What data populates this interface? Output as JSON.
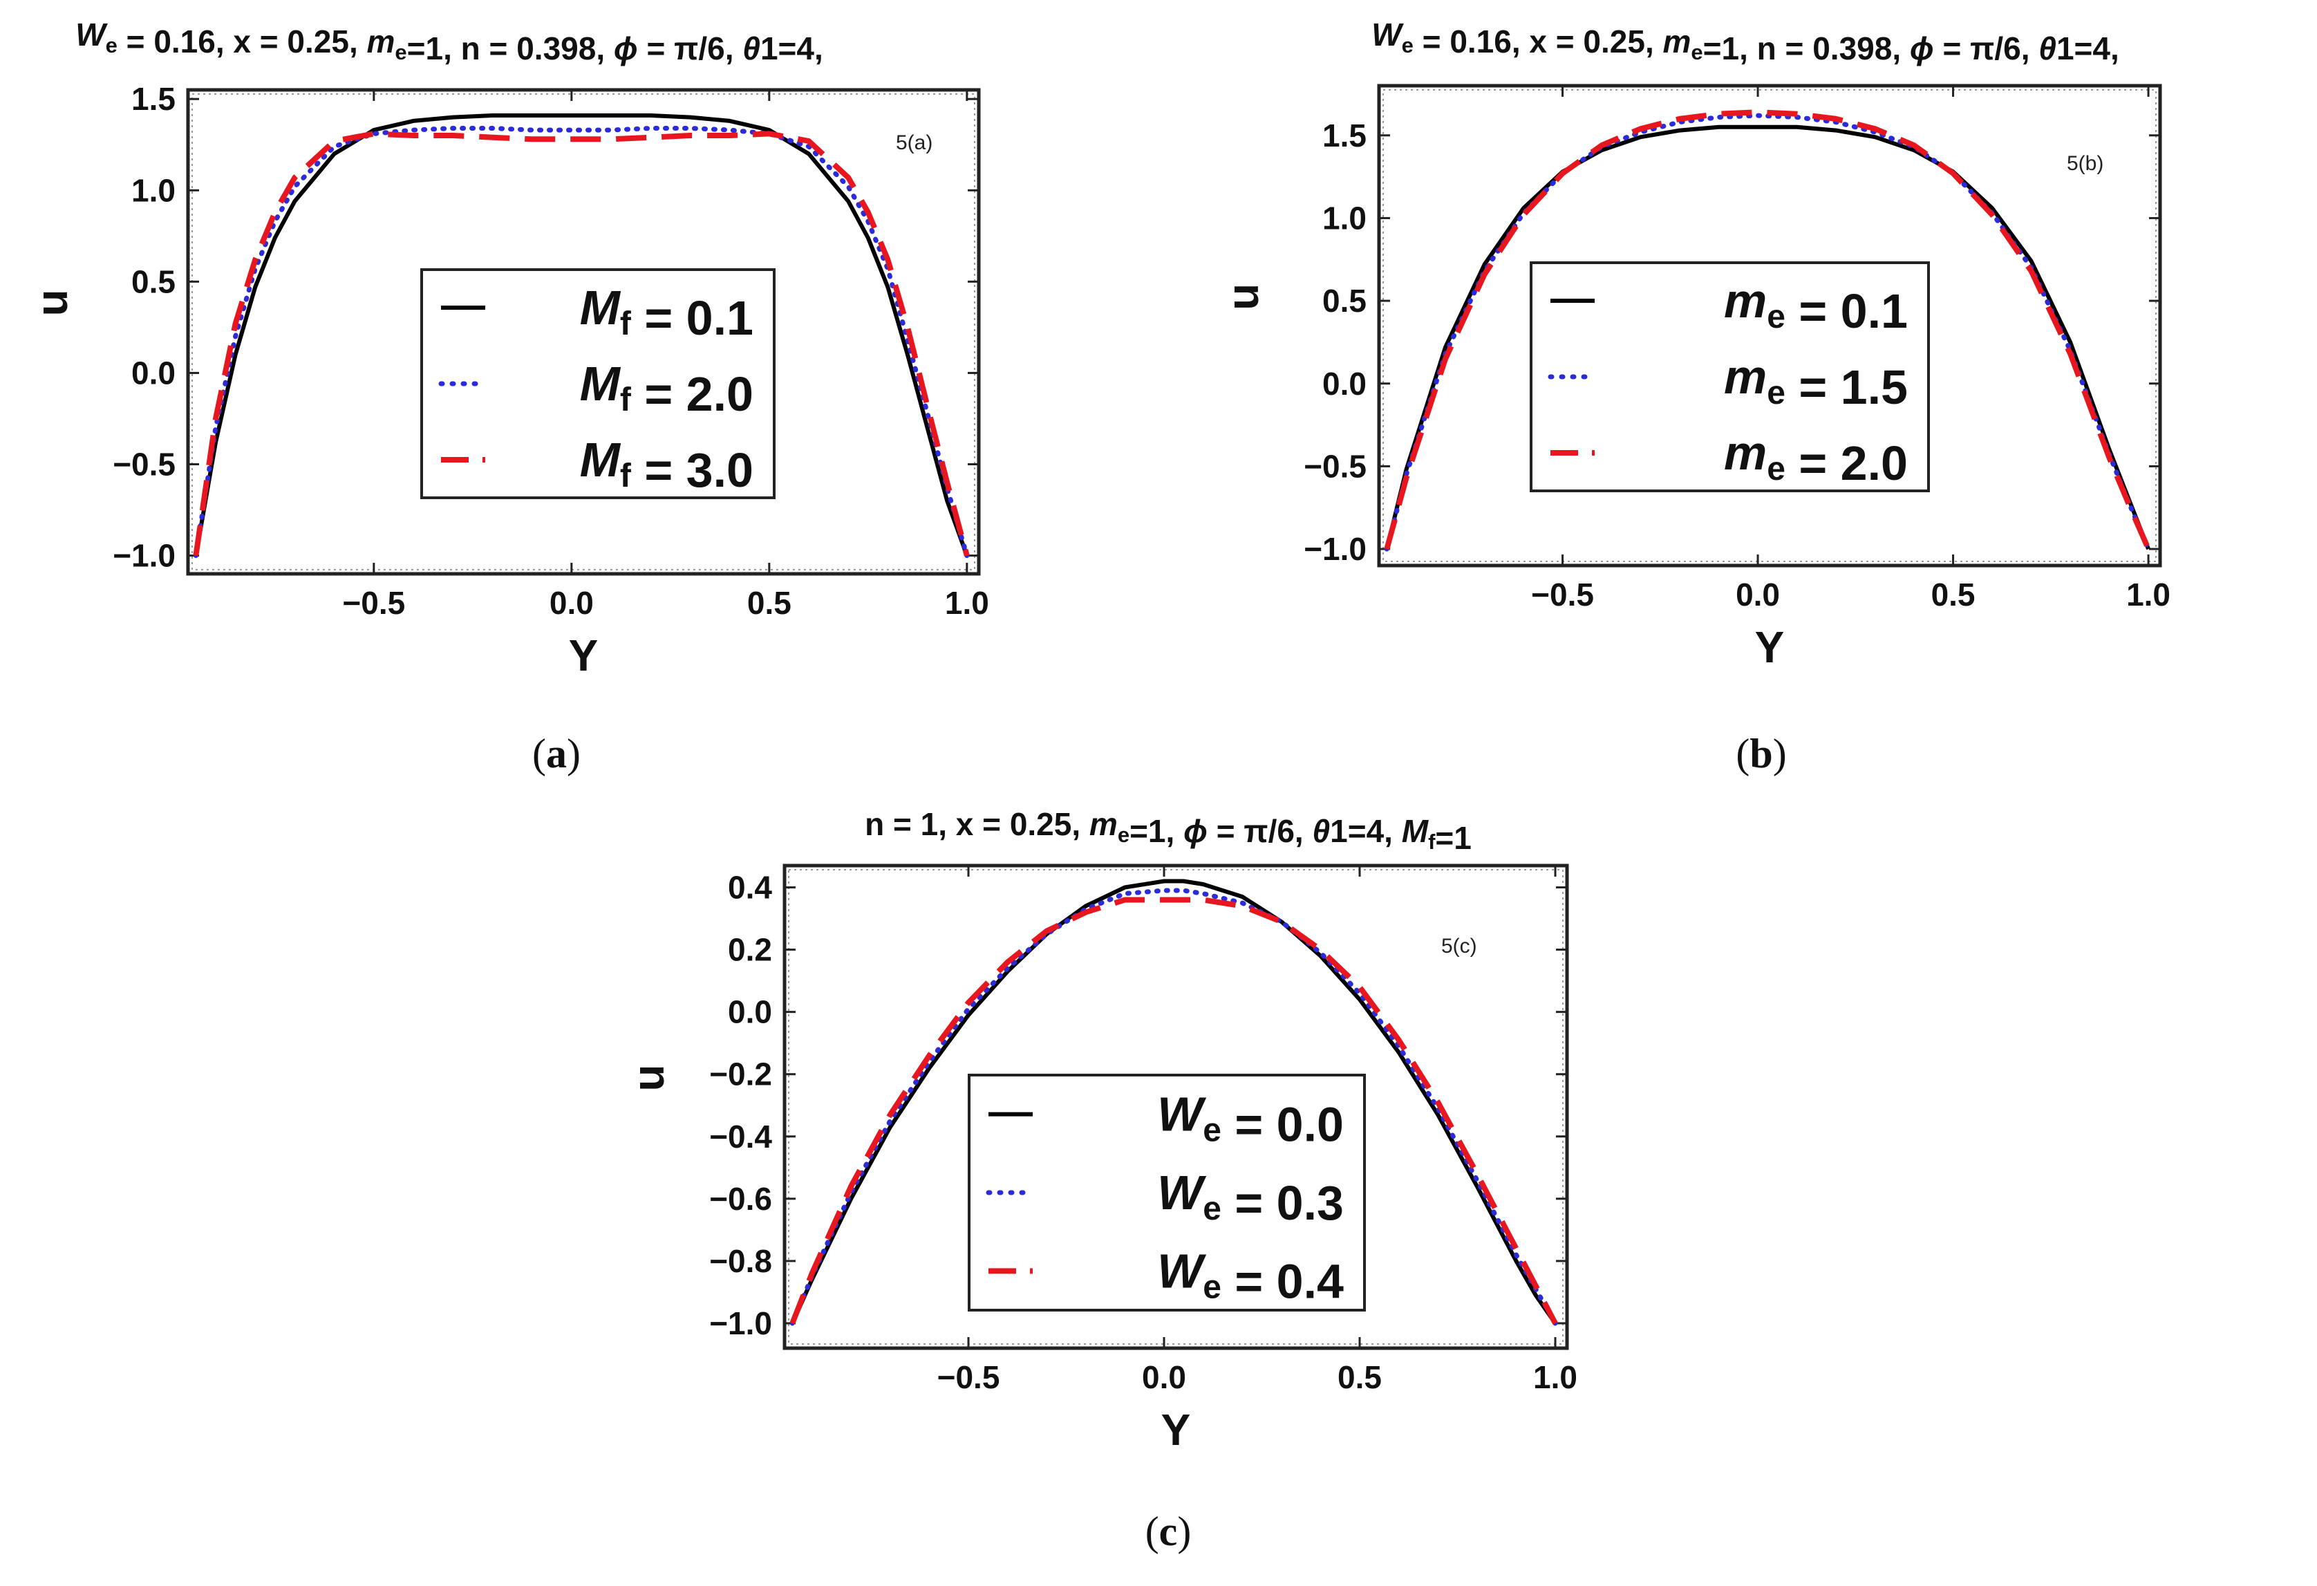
{
  "panels": [
    {
      "title_parts": [
        {
          "t": "W",
          "i": true
        },
        {
          "t": "e",
          "sub": true
        },
        {
          "t": " = 0.16, x = 0.25, "
        },
        {
          "t": "m",
          "i": true
        },
        {
          "t": "e",
          "sub": true
        },
        {
          "t": "=1, n = 0.398, "
        },
        {
          "t": "ϕ",
          "i": true
        },
        {
          "t": " = π/6, "
        },
        {
          "t": "θ",
          "i": true
        },
        {
          "t": "1=4,"
        }
      ],
      "panel_tag": "5(a)",
      "caption": "a",
      "legend": [
        {
          "main": "M",
          "sub": "f",
          "rest": " = 0.1"
        },
        {
          "main": "M",
          "sub": "f",
          "rest": " = 2.0"
        },
        {
          "main": "M",
          "sub": "f",
          "rest": " = 3.0"
        }
      ]
    },
    {
      "title_parts": [
        {
          "t": "W",
          "i": true
        },
        {
          "t": "e",
          "sub": true
        },
        {
          "t": " = 0.16, x = 0.25, "
        },
        {
          "t": "m",
          "i": true
        },
        {
          "t": "e",
          "sub": true
        },
        {
          "t": "=1, n = 0.398, "
        },
        {
          "t": "ϕ",
          "i": true
        },
        {
          "t": " = π/6, "
        },
        {
          "t": "θ",
          "i": true
        },
        {
          "t": "1=4,"
        }
      ],
      "panel_tag": "5(b)",
      "caption": "b",
      "legend": [
        {
          "main": "m",
          "sub": "e",
          "rest": " = 0.1"
        },
        {
          "main": "m",
          "sub": "e",
          "rest": " = 1.5"
        },
        {
          "main": "m",
          "sub": "e",
          "rest": " = 2.0"
        }
      ]
    },
    {
      "title_parts": [
        {
          "t": "n = 1, x = 0.25, "
        },
        {
          "t": "m",
          "i": true
        },
        {
          "t": "e",
          "sub": true
        },
        {
          "t": "=1, "
        },
        {
          "t": "ϕ",
          "i": true
        },
        {
          "t": " = π/6, "
        },
        {
          "t": "θ",
          "i": true
        },
        {
          "t": "1=4, "
        },
        {
          "t": "M",
          "i": true
        },
        {
          "t": "f",
          "sub": true
        },
        {
          "t": "=1"
        }
      ],
      "panel_tag": "5(c)",
      "caption": "c",
      "legend": [
        {
          "main": "W",
          "sub": "e",
          "rest": " = 0.0"
        },
        {
          "main": "W",
          "sub": "e",
          "rest": " = 0.3"
        },
        {
          "main": "W",
          "sub": "e",
          "rest": " = 0.4"
        }
      ]
    }
  ],
  "series_styles": [
    {
      "color": "#000000",
      "dash": "solid"
    },
    {
      "color": "#2b2bd9",
      "dash": "dotted"
    },
    {
      "color": "#e8171f",
      "dash": "dashed"
    }
  ],
  "chart_data": [
    {
      "type": "line",
      "xlabel": "Y",
      "ylabel": "u",
      "xlim": [
        -0.97,
        1.03
      ],
      "ylim": [
        -1.1,
        1.55
      ],
      "xticks": [
        -0.5,
        0.0,
        0.5,
        1.0
      ],
      "xtick_labels": [
        "−0.5",
        "0.0",
        "0.5",
        "1.0"
      ],
      "yticks": [
        -1.0,
        -0.5,
        0.0,
        0.5,
        1.0,
        1.5
      ],
      "ytick_labels": [
        "−1.0",
        "−0.5",
        "0.0",
        "0.5",
        "1.0",
        "1.5"
      ],
      "legend_position": "lower-center",
      "series": [
        {
          "x": [
            -0.95,
            -0.9,
            -0.85,
            -0.8,
            -0.75,
            -0.7,
            -0.6,
            -0.5,
            -0.4,
            -0.3,
            -0.2,
            -0.1,
            0.0,
            0.1,
            0.2,
            0.3,
            0.4,
            0.5,
            0.6,
            0.7,
            0.75,
            0.8,
            0.85,
            0.9,
            0.95,
            1.0
          ],
          "y": [
            -1.0,
            -0.38,
            0.1,
            0.47,
            0.74,
            0.94,
            1.2,
            1.33,
            1.38,
            1.4,
            1.41,
            1.41,
            1.41,
            1.41,
            1.41,
            1.4,
            1.38,
            1.33,
            1.2,
            0.94,
            0.74,
            0.47,
            0.1,
            -0.3,
            -0.7,
            -1.0
          ]
        },
        {
          "x": [
            -0.95,
            -0.9,
            -0.85,
            -0.8,
            -0.75,
            -0.7,
            -0.6,
            -0.5,
            -0.4,
            -0.3,
            -0.2,
            -0.1,
            0.0,
            0.1,
            0.2,
            0.3,
            0.4,
            0.5,
            0.6,
            0.7,
            0.75,
            0.8,
            0.85,
            0.9,
            0.95,
            1.0
          ],
          "y": [
            -1.0,
            -0.3,
            0.2,
            0.57,
            0.83,
            1.02,
            1.24,
            1.31,
            1.33,
            1.34,
            1.34,
            1.33,
            1.33,
            1.33,
            1.34,
            1.34,
            1.33,
            1.31,
            1.24,
            1.02,
            0.83,
            0.57,
            0.18,
            -0.22,
            -0.63,
            -1.0
          ]
        },
        {
          "x": [
            -0.95,
            -0.9,
            -0.85,
            -0.8,
            -0.75,
            -0.7,
            -0.6,
            -0.5,
            -0.4,
            -0.3,
            -0.2,
            -0.1,
            0.0,
            0.1,
            0.2,
            0.3,
            0.4,
            0.5,
            0.6,
            0.7,
            0.75,
            0.8,
            0.85,
            0.9,
            0.95,
            1.0
          ],
          "y": [
            -1.0,
            -0.25,
            0.27,
            0.62,
            0.88,
            1.07,
            1.27,
            1.31,
            1.3,
            1.3,
            1.29,
            1.28,
            1.28,
            1.28,
            1.29,
            1.3,
            1.3,
            1.31,
            1.27,
            1.07,
            0.88,
            0.62,
            0.25,
            -0.18,
            -0.6,
            -1.0
          ]
        }
      ]
    },
    {
      "type": "line",
      "xlabel": "Y",
      "ylabel": "u",
      "xlim": [
        -0.97,
        1.03
      ],
      "ylim": [
        -1.1,
        1.8
      ],
      "xticks": [
        -0.5,
        0.0,
        0.5,
        1.0
      ],
      "xtick_labels": [
        "−0.5",
        "0.0",
        "0.5",
        "1.0"
      ],
      "yticks": [
        -1.0,
        -0.5,
        0.0,
        0.5,
        1.0,
        1.5
      ],
      "ytick_labels": [
        "−1.0",
        "−0.5",
        "0.0",
        "0.5",
        "1.0",
        "1.5"
      ],
      "legend_position": "lower-center",
      "series": [
        {
          "x": [
            -0.95,
            -0.9,
            -0.8,
            -0.7,
            -0.6,
            -0.5,
            -0.4,
            -0.3,
            -0.2,
            -0.1,
            0.0,
            0.1,
            0.2,
            0.3,
            0.4,
            0.5,
            0.6,
            0.7,
            0.8,
            0.9,
            0.95,
            1.0
          ],
          "y": [
            -1.0,
            -0.52,
            0.22,
            0.72,
            1.06,
            1.28,
            1.41,
            1.49,
            1.53,
            1.55,
            1.55,
            1.55,
            1.53,
            1.49,
            1.41,
            1.28,
            1.06,
            0.74,
            0.25,
            -0.4,
            -0.7,
            -1.0
          ]
        },
        {
          "x": [
            -0.95,
            -0.9,
            -0.8,
            -0.7,
            -0.6,
            -0.5,
            -0.4,
            -0.3,
            -0.2,
            -0.1,
            0.0,
            0.1,
            0.2,
            0.3,
            0.4,
            0.5,
            0.6,
            0.7,
            0.8,
            0.9,
            0.95,
            1.0
          ],
          "y": [
            -1.0,
            -0.55,
            0.18,
            0.68,
            1.03,
            1.27,
            1.43,
            1.52,
            1.58,
            1.61,
            1.62,
            1.61,
            1.58,
            1.52,
            1.43,
            1.27,
            1.03,
            0.7,
            0.2,
            -0.43,
            -0.72,
            -1.0
          ]
        },
        {
          "x": [
            -0.95,
            -0.9,
            -0.8,
            -0.7,
            -0.6,
            -0.5,
            -0.4,
            -0.3,
            -0.2,
            -0.1,
            0.0,
            0.1,
            0.2,
            0.3,
            0.4,
            0.5,
            0.6,
            0.7,
            0.8,
            0.9,
            0.95,
            1.0
          ],
          "y": [
            -1.0,
            -0.57,
            0.15,
            0.66,
            1.02,
            1.27,
            1.44,
            1.54,
            1.6,
            1.63,
            1.64,
            1.63,
            1.6,
            1.54,
            1.44,
            1.27,
            1.02,
            0.68,
            0.18,
            -0.45,
            -0.73,
            -1.0
          ]
        }
      ]
    },
    {
      "type": "line",
      "xlabel": "Y",
      "ylabel": "u",
      "xlim": [
        -0.97,
        1.03
      ],
      "ylim": [
        -1.08,
        0.47
      ],
      "xticks": [
        -0.5,
        0.0,
        0.5,
        1.0
      ],
      "xtick_labels": [
        "−0.5",
        "0.0",
        "0.5",
        "1.0"
      ],
      "yticks": [
        -1.0,
        -0.8,
        -0.6,
        -0.4,
        -0.2,
        0.0,
        0.2,
        0.4
      ],
      "ytick_labels": [
        "−1.0",
        "−0.8",
        "−0.6",
        "−0.4",
        "−0.2",
        "0.0",
        "0.2",
        "0.4"
      ],
      "legend_position": "lower-center",
      "series": [
        {
          "x": [
            -0.95,
            -0.9,
            -0.8,
            -0.7,
            -0.6,
            -0.5,
            -0.4,
            -0.3,
            -0.2,
            -0.1,
            0.0,
            0.05,
            0.1,
            0.2,
            0.3,
            0.4,
            0.5,
            0.6,
            0.7,
            0.8,
            0.9,
            0.95,
            1.0
          ],
          "y": [
            -1.0,
            -0.86,
            -0.6,
            -0.37,
            -0.18,
            -0.01,
            0.13,
            0.25,
            0.34,
            0.4,
            0.42,
            0.42,
            0.41,
            0.37,
            0.29,
            0.18,
            0.04,
            -0.13,
            -0.33,
            -0.56,
            -0.8,
            -0.91,
            -1.0
          ]
        },
        {
          "x": [
            -0.95,
            -0.9,
            -0.8,
            -0.7,
            -0.6,
            -0.5,
            -0.4,
            -0.3,
            -0.2,
            -0.1,
            0.0,
            0.05,
            0.1,
            0.2,
            0.3,
            0.4,
            0.5,
            0.6,
            0.7,
            0.8,
            0.9,
            0.95,
            1.0
          ],
          "y": [
            -1.0,
            -0.85,
            -0.58,
            -0.35,
            -0.16,
            0.01,
            0.14,
            0.25,
            0.33,
            0.38,
            0.39,
            0.39,
            0.38,
            0.35,
            0.29,
            0.19,
            0.06,
            -0.11,
            -0.31,
            -0.54,
            -0.78,
            -0.89,
            -1.0
          ]
        },
        {
          "x": [
            -0.95,
            -0.9,
            -0.8,
            -0.7,
            -0.6,
            -0.5,
            -0.4,
            -0.3,
            -0.2,
            -0.1,
            0.0,
            0.05,
            0.1,
            0.2,
            0.3,
            0.4,
            0.5,
            0.6,
            0.7,
            0.8,
            0.9,
            0.95,
            1.0
          ],
          "y": [
            -1.0,
            -0.84,
            -0.56,
            -0.33,
            -0.14,
            0.03,
            0.16,
            0.26,
            0.32,
            0.36,
            0.36,
            0.36,
            0.36,
            0.34,
            0.29,
            0.2,
            0.08,
            -0.09,
            -0.29,
            -0.52,
            -0.76,
            -0.88,
            -1.0
          ]
        }
      ]
    }
  ]
}
